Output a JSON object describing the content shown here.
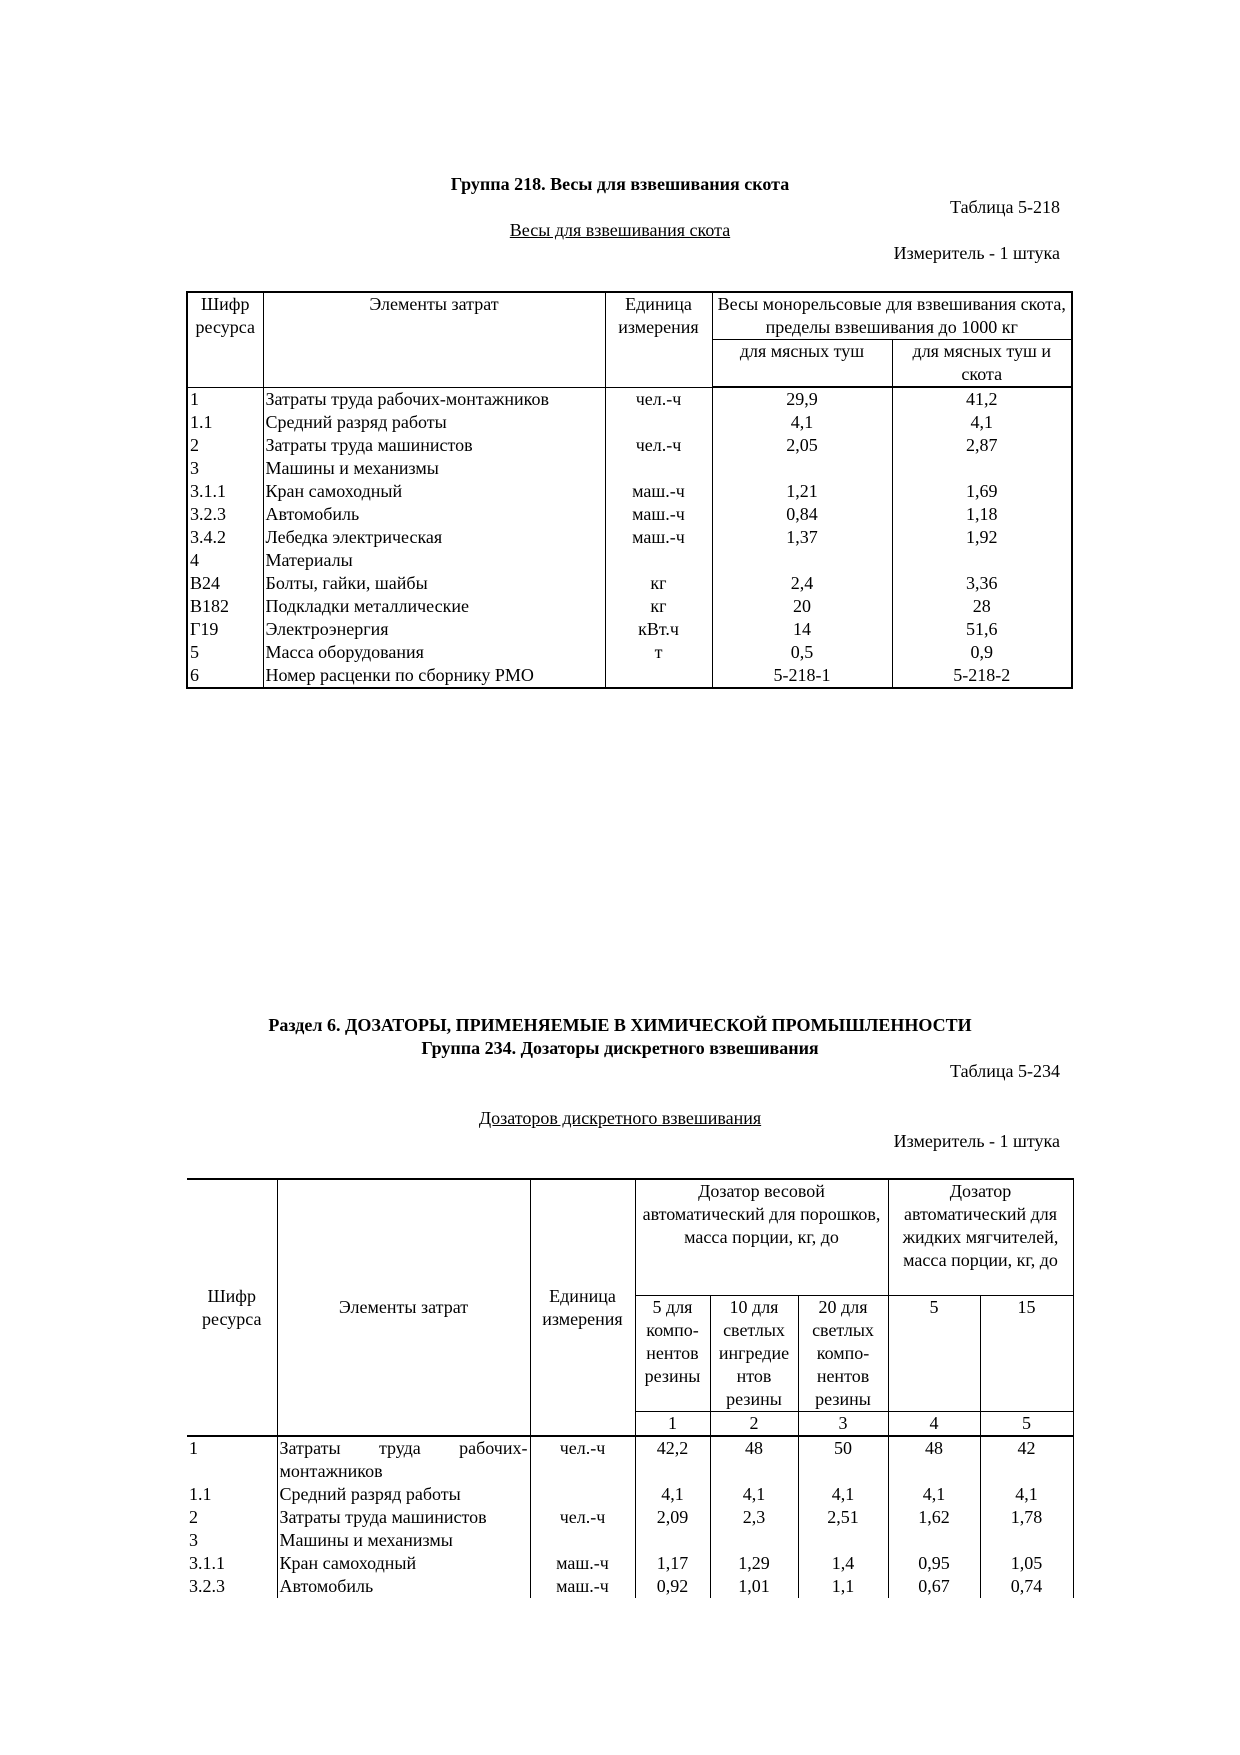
{
  "section1": {
    "group_title": "Группа 218. Весы для взвешивания скота",
    "table_no": "Таблица 5-218",
    "table_name": "Весы для взвешивания скота",
    "unit": "Измеритель - 1 штука",
    "headers": {
      "code": "Шифр ресурса",
      "elements": "Элементы затрат",
      "unit": "Единица измерения",
      "group": "Весы монорельсовые для взвешивания скота, пределы взвешивания до 1000 кг",
      "cols": [
        "для мясных туш",
        "для мясных туш и скота"
      ]
    },
    "rows": [
      {
        "code": "1",
        "name": "Затраты труда рабочих-монтажников",
        "unit": "чел.-ч",
        "v": [
          "29,9",
          "41,2"
        ]
      },
      {
        "code": "1.1",
        "name": "Средний разряд работы",
        "unit": "",
        "v": [
          "4,1",
          "4,1"
        ]
      },
      {
        "code": "2",
        "name": "Затраты труда машинистов",
        "unit": "чел.-ч",
        "v": [
          "2,05",
          "2,87"
        ]
      },
      {
        "code": "3",
        "name": "Машины и механизмы",
        "unit": "",
        "v": [
          "",
          ""
        ]
      },
      {
        "code": "3.1.1",
        "name": "Кран самоходный",
        "unit": "маш.-ч",
        "v": [
          "1,21",
          "1,69"
        ]
      },
      {
        "code": "3.2.3",
        "name": "Автомобиль",
        "unit": "маш.-ч",
        "v": [
          "0,84",
          "1,18"
        ]
      },
      {
        "code": "3.4.2",
        "name": "Лебедка электрическая",
        "unit": "маш.-ч",
        "v": [
          "1,37",
          "1,92"
        ]
      },
      {
        "code": "4",
        "name": "Материалы",
        "unit": "",
        "v": [
          "",
          ""
        ]
      },
      {
        "code": "В24",
        "name": "Болты, гайки, шайбы",
        "unit": "кг",
        "v": [
          "2,4",
          "3,36"
        ]
      },
      {
        "code": "В182",
        "name": "Подкладки металлические",
        "unit": "кг",
        "v": [
          "20",
          "28"
        ]
      },
      {
        "code": "Г19",
        "name": "Электроэнергия",
        "unit": "кВт.ч",
        "v": [
          "14",
          "51,6"
        ]
      },
      {
        "code": "5",
        "name": "Масса оборудования",
        "unit": "т",
        "v": [
          "0,5",
          "0,9"
        ]
      },
      {
        "code": "6",
        "name": "Номер расценки по сборнику РМО",
        "unit": "",
        "v": [
          "5-218-1",
          "5-218-2"
        ]
      }
    ]
  },
  "section2": {
    "section_title": "Раздел 6. ДОЗАТОРЫ, ПРИМЕНЯЕМЫЕ В ХИМИЧЕСКОЙ ПРОМЫШЛЕННОСТИ",
    "group_title": "Группа 234. Дозаторы дискретного взвешивания",
    "table_no": "Таблица 5-234",
    "table_name": "Дозаторов дискретного взвешивания",
    "unit": "Измеритель - 1 штука",
    "headers": {
      "code": "Шифр ресурса",
      "elements": "Элементы затрат",
      "unit": "Единица измерения",
      "group1": "Дозатор весовой автоматический для порошков, масса порции, кг, до",
      "group2": "Дозатор автоматический для жидких мягчителей, масса порции, кг, до",
      "cols": [
        "5 для компо-нентов резины",
        "10 для светлых ингредие нтов резины",
        "20 для светлых компо-нентов резины",
        "5",
        "15"
      ],
      "col_numbers": [
        "1",
        "2",
        "3",
        "4",
        "5"
      ]
    },
    "rows": [
      {
        "code": "1",
        "name": "Затраты труда рабочих-монтажников",
        "unit": "чел.-ч",
        "v": [
          "42,2",
          "48",
          "50",
          "48",
          "42"
        ]
      },
      {
        "code": "1.1",
        "name": "Средний разряд работы",
        "unit": "",
        "v": [
          "4,1",
          "4,1",
          "4,1",
          "4,1",
          "4,1"
        ]
      },
      {
        "code": "2",
        "name": "Затраты труда машинистов",
        "unit": "чел.-ч",
        "v": [
          "2,09",
          "2,3",
          "2,51",
          "1,62",
          "1,78"
        ]
      },
      {
        "code": "3",
        "name": "Машины и механизмы",
        "unit": "",
        "v": [
          "",
          "",
          "",
          "",
          ""
        ]
      },
      {
        "code": "3.1.1",
        "name": "Кран самоходный",
        "unit": "маш.-ч",
        "v": [
          "1,17",
          "1,29",
          "1,4",
          "0,95",
          "1,05"
        ]
      },
      {
        "code": "3.2.3",
        "name": "Автомобиль",
        "unit": "маш.-ч",
        "v": [
          "0,92",
          "1,01",
          "1,1",
          "0,67",
          "0,74"
        ]
      }
    ]
  }
}
